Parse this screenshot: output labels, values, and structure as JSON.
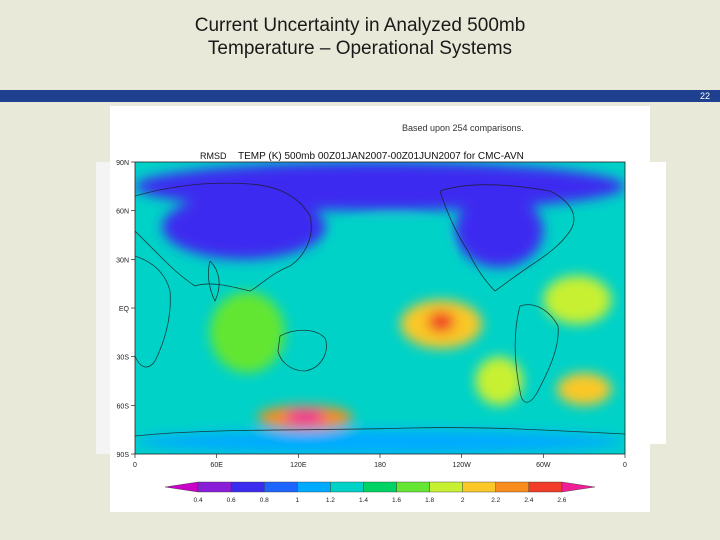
{
  "slide": {
    "title_line1": "Current Uncertainty in Analyzed 500mb",
    "title_line2": "Temperature – Operational Systems",
    "page_number": "22",
    "band_color": "#1f3f8f"
  },
  "chart_data": {
    "type": "heatmap",
    "title": "TEMP (K) 500mb 00Z01JAN2007-00Z01JUN2007 for CMC-AVN",
    "annotation": "Based upon 254 comparisons.",
    "side_label": "RMSD",
    "y_ticks": [
      "90N",
      "60N",
      "30N",
      "EQ",
      "30S",
      "60S",
      "90S"
    ],
    "x_ticks": [
      "0",
      "60E",
      "120E",
      "180",
      "120W",
      "60W",
      "0"
    ],
    "left_margin_ticks": [
      "90N",
      "60N",
      "30N",
      "EQ",
      "30S",
      "60S",
      "90S"
    ],
    "xlim": [
      0,
      360
    ],
    "ylim": [
      -90,
      90
    ],
    "colorbar": {
      "levels": [
        "0.4",
        "0.6",
        "0.8",
        "1",
        "1.2",
        "1.4",
        "1.6",
        "1.8",
        "2",
        "2.2",
        "2.4",
        "2.6"
      ],
      "colors": [
        "#c800c8",
        "#8a1ed8",
        "#3c2cf0",
        "#1e64ff",
        "#00aaff",
        "#00d2c8",
        "#00d264",
        "#64e632",
        "#c8f032",
        "#fac828",
        "#fa8c1e",
        "#f03c28",
        "#f01e96"
      ]
    },
    "background_color": "#00d2c8",
    "features": [
      {
        "region": "Arctic / high northern latitudes",
        "lon": [
          0,
          360
        ],
        "lat": [
          60,
          90
        ],
        "value": 0.7
      },
      {
        "region": "Eurasia",
        "lon": [
          20,
          140
        ],
        "lat": [
          30,
          70
        ],
        "value": 0.7
      },
      {
        "region": "North America",
        "lon": [
          235,
          300
        ],
        "lat": [
          25,
          70
        ],
        "value": 0.7
      },
      {
        "region": "North Pacific",
        "lon": [
          150,
          230
        ],
        "lat": [
          20,
          55
        ],
        "value": 1.2
      },
      {
        "region": "Tropical Pacific hotspot",
        "lon": [
          195,
          255
        ],
        "lat": [
          -25,
          5
        ],
        "value": 2.0
      },
      {
        "region": "Tropical Pacific peak",
        "lon": [
          215,
          235
        ],
        "lat": [
          -15,
          -2
        ],
        "value": 2.4
      },
      {
        "region": "Southeast Pacific",
        "lon": [
          250,
          285
        ],
        "lat": [
          -60,
          -30
        ],
        "value": 1.8
      },
      {
        "region": "South Atlantic",
        "lon": [
          310,
          350
        ],
        "lat": [
          -60,
          -40
        ],
        "value": 2.0
      },
      {
        "region": "Southern Ocean (Indian sector)",
        "lon": [
          90,
          160
        ],
        "lat": [
          -75,
          -60
        ],
        "value": 2.2
      },
      {
        "region": "Southern Ocean peak",
        "lon": [
          110,
          140
        ],
        "lat": [
          -72,
          -63
        ],
        "value": 2.6
      },
      {
        "region": "Indian Ocean",
        "lon": [
          55,
          110
        ],
        "lat": [
          -40,
          10
        ],
        "value": 1.6
      },
      {
        "region": "Tropical Atlantic",
        "lon": [
          300,
          350
        ],
        "lat": [
          -10,
          20
        ],
        "value": 1.8
      },
      {
        "region": "Antarctica",
        "lon": [
          0,
          360
        ],
        "lat": [
          -90,
          -75
        ],
        "value": 1.0
      }
    ]
  }
}
